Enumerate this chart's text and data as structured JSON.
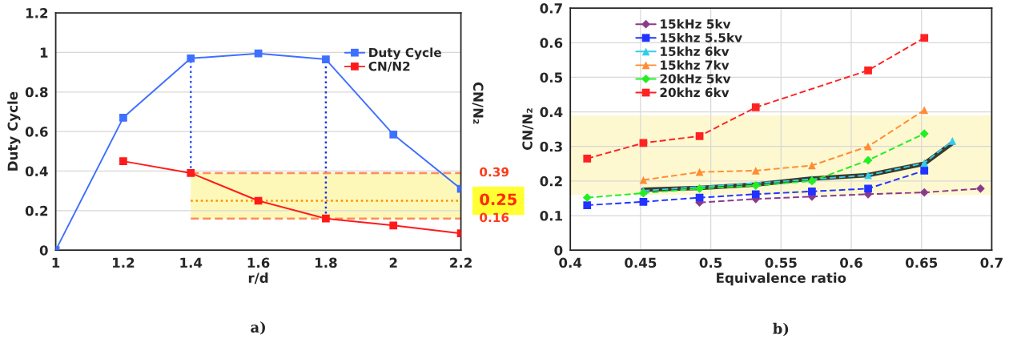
{
  "chart_data": [
    {
      "type": "line",
      "title": "a)",
      "xlabel": "r/d",
      "ylabel": "Duty Cycle",
      "y2label": "CN/N₂",
      "x": [
        1,
        1.2,
        1.4,
        1.6,
        1.8,
        2,
        2.2
      ],
      "series": [
        {
          "name": "Duty Cycle",
          "color": "#3f6fff",
          "values": [
            0,
            0.67,
            0.97,
            0.995,
            0.965,
            0.585,
            0.31
          ]
        },
        {
          "name": "CN/N2",
          "color": "#ff1a1a",
          "x": [
            1.2,
            1.4,
            1.6,
            1.8,
            2,
            2.2
          ],
          "values": [
            0.45,
            0.39,
            0.25,
            0.16,
            0.125,
            0.085
          ]
        }
      ],
      "xlim": [
        1,
        2.2
      ],
      "xticks": [
        1,
        1.2,
        1.4,
        1.6,
        1.8,
        2,
        2.2
      ],
      "ylim": [
        0,
        1.2
      ],
      "yticks": [
        0,
        0.2,
        0.4,
        0.6,
        0.8,
        1,
        1.2
      ],
      "ref_lines": [
        {
          "axis": "x",
          "value": 1.4,
          "color": "#3355ff",
          "line_style": "dotted"
        },
        {
          "axis": "x",
          "value": 1.8,
          "color": "#2233dd",
          "line_style": "dotted"
        },
        {
          "axis": "y",
          "value": 0.39,
          "label": "0.39",
          "color": "#ff8c5a",
          "line_style": "dashed"
        },
        {
          "axis": "y",
          "value": 0.25,
          "label": "0.25",
          "color": "#ff8c00",
          "line_style": "dotted"
        },
        {
          "axis": "y",
          "value": 0.16,
          "label": "0.16",
          "color": "#ff8c5a",
          "line_style": "dashed"
        }
      ],
      "bands": [
        {
          "axis": "y",
          "from": 0.16,
          "to": 0.39,
          "color": "#fdf8b8"
        }
      ],
      "grid": "y",
      "legend": "top right",
      "marker": "square",
      "line_style": "solid"
    },
    {
      "type": "line",
      "title": "b)",
      "xlabel": "Equivalence ratio",
      "ylabel": "CN/N₂",
      "series": [
        {
          "name": "15kHz 5kv",
          "color": "#8b3a8b",
          "marker": "diamond",
          "line_style": "dashed",
          "x": [
            0.492,
            0.532,
            0.572,
            0.612,
            0.652,
            0.692
          ],
          "values": [
            0.138,
            0.148,
            0.155,
            0.162,
            0.167,
            0.178
          ]
        },
        {
          "name": "15khz 5.5kv",
          "color": "#2233ff",
          "marker": "square",
          "line_style": "dashed",
          "x": [
            0.412,
            0.452,
            0.492,
            0.532,
            0.572,
            0.612,
            0.652
          ],
          "values": [
            0.13,
            0.14,
            0.152,
            0.162,
            0.17,
            0.178,
            0.23
          ]
        },
        {
          "name": "15khz 6kv",
          "color": "#33ccee",
          "marker": "triangle",
          "line_style": "dashed",
          "x": [
            0.452,
            0.492,
            0.532,
            0.572,
            0.612,
            0.652,
            0.672
          ],
          "values": [
            0.172,
            null,
            null,
            0.205,
            0.217,
            0.252,
            0.316
          ]
        },
        {
          "name": "15khz 7kv",
          "color": "#ff8c33",
          "marker": "triangle",
          "line_style": "dashed",
          "x": [
            0.452,
            0.492,
            0.532,
            0.572,
            0.612,
            0.652
          ],
          "values": [
            0.203,
            0.226,
            0.23,
            0.245,
            0.3,
            0.405
          ]
        },
        {
          "name": "20kHz 5kv",
          "color": "#22ee22",
          "marker": "diamond",
          "line_style": "dashed",
          "x": [
            0.412,
            0.452,
            0.492,
            0.532,
            0.572,
            0.612,
            0.652
          ],
          "values": [
            0.152,
            0.165,
            0.178,
            0.187,
            0.2,
            0.26,
            0.337
          ]
        },
        {
          "name": "20khz 6kv",
          "color": "#ff2222",
          "marker": "square",
          "line_style": "dashed",
          "x": [
            0.412,
            0.452,
            0.492,
            0.532,
            0.612,
            0.652
          ],
          "values": [
            0.265,
            0.31,
            0.33,
            0.413,
            0.52,
            0.614
          ]
        },
        {
          "color": "#3a3a2a",
          "marker": "none",
          "line_style": "solid",
          "x": [
            0.452,
            0.492,
            0.532,
            0.572,
            0.612,
            0.652,
            0.672
          ],
          "values": [
            0.175,
            0.18,
            0.19,
            0.207,
            0.217,
            0.25,
            0.31
          ]
        }
      ],
      "xlim": [
        0.4,
        0.7
      ],
      "xticks": [
        0.4,
        0.45,
        0.5,
        0.55,
        0.6,
        0.65,
        0.7
      ],
      "ylim": [
        0,
        0.7
      ],
      "yticks": [
        0,
        0.1,
        0.2,
        0.3,
        0.4,
        0.5,
        0.6,
        0.7
      ],
      "bands": [
        {
          "axis": "y",
          "from": 0.16,
          "to": 0.39,
          "color": "#fdf8d0"
        }
      ],
      "grid": true,
      "legend": "top left"
    }
  ]
}
